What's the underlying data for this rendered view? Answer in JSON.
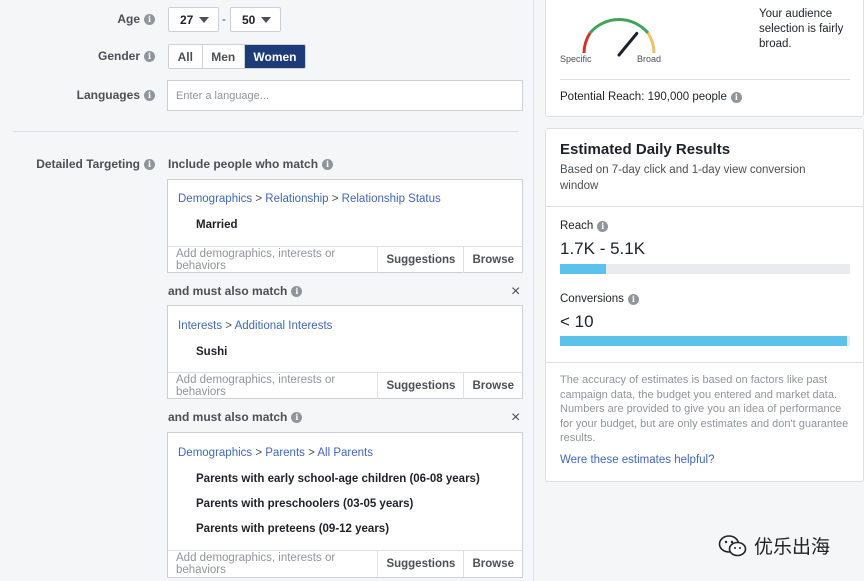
{
  "age": {
    "label": "Age",
    "min": "27",
    "max": "50",
    "separator": "-"
  },
  "gender": {
    "label": "Gender",
    "options": [
      "All",
      "Men",
      "Women"
    ],
    "selected": "Women"
  },
  "languages": {
    "label": "Languages",
    "placeholder": "Enter a language..."
  },
  "detailed": {
    "label": "Detailed Targeting",
    "include_label": "Include people who match",
    "also_label": "and must also match",
    "add_placeholder": "Add demographics, interests or behaviors",
    "suggestions": "Suggestions",
    "browse": "Browse",
    "groups": [
      {
        "crumbs": [
          "Demographics",
          "Relationship",
          "Relationship Status"
        ],
        "items": [
          "Married"
        ]
      },
      {
        "crumbs": [
          "Interests",
          "Additional Interests"
        ],
        "items": [
          "Sushi"
        ]
      },
      {
        "crumbs": [
          "Demographics",
          "Parents",
          "All Parents"
        ],
        "items": [
          "Parents with early school-age children (06-08 years)",
          "Parents with preschoolers (03-05 years)",
          "Parents with preteens (09-12 years)"
        ]
      }
    ]
  },
  "audience": {
    "gauge_specific": "Specific",
    "gauge_broad": "Broad",
    "gauge_level": 0.72,
    "description": "Your audience selection is fairly broad.",
    "potential_reach": "Potential Reach: 190,000 people"
  },
  "daily": {
    "title": "Estimated Daily Results",
    "subtitle": "Based on 7-day click and 1-day view conversion window",
    "reach_label": "Reach",
    "reach_value": "1.7K - 5.1K",
    "reach_fill": 0.16,
    "conv_label": "Conversions",
    "conv_value": "< 10",
    "conv_fill": 0.99,
    "disclaimer": "The accuracy of estimates is based on factors like past campaign data, the budget you entered and market data. Numbers are provided to give you an idea of performance for your budget, but are only estimates and don't guarantee results.",
    "helpful_link": "Were these estimates helpful?"
  },
  "watermark": {
    "text": "优乐出海"
  },
  "colors": {
    "accent": "#1c3b77",
    "link": "#4267b2",
    "bar": "#5bc2ea"
  }
}
